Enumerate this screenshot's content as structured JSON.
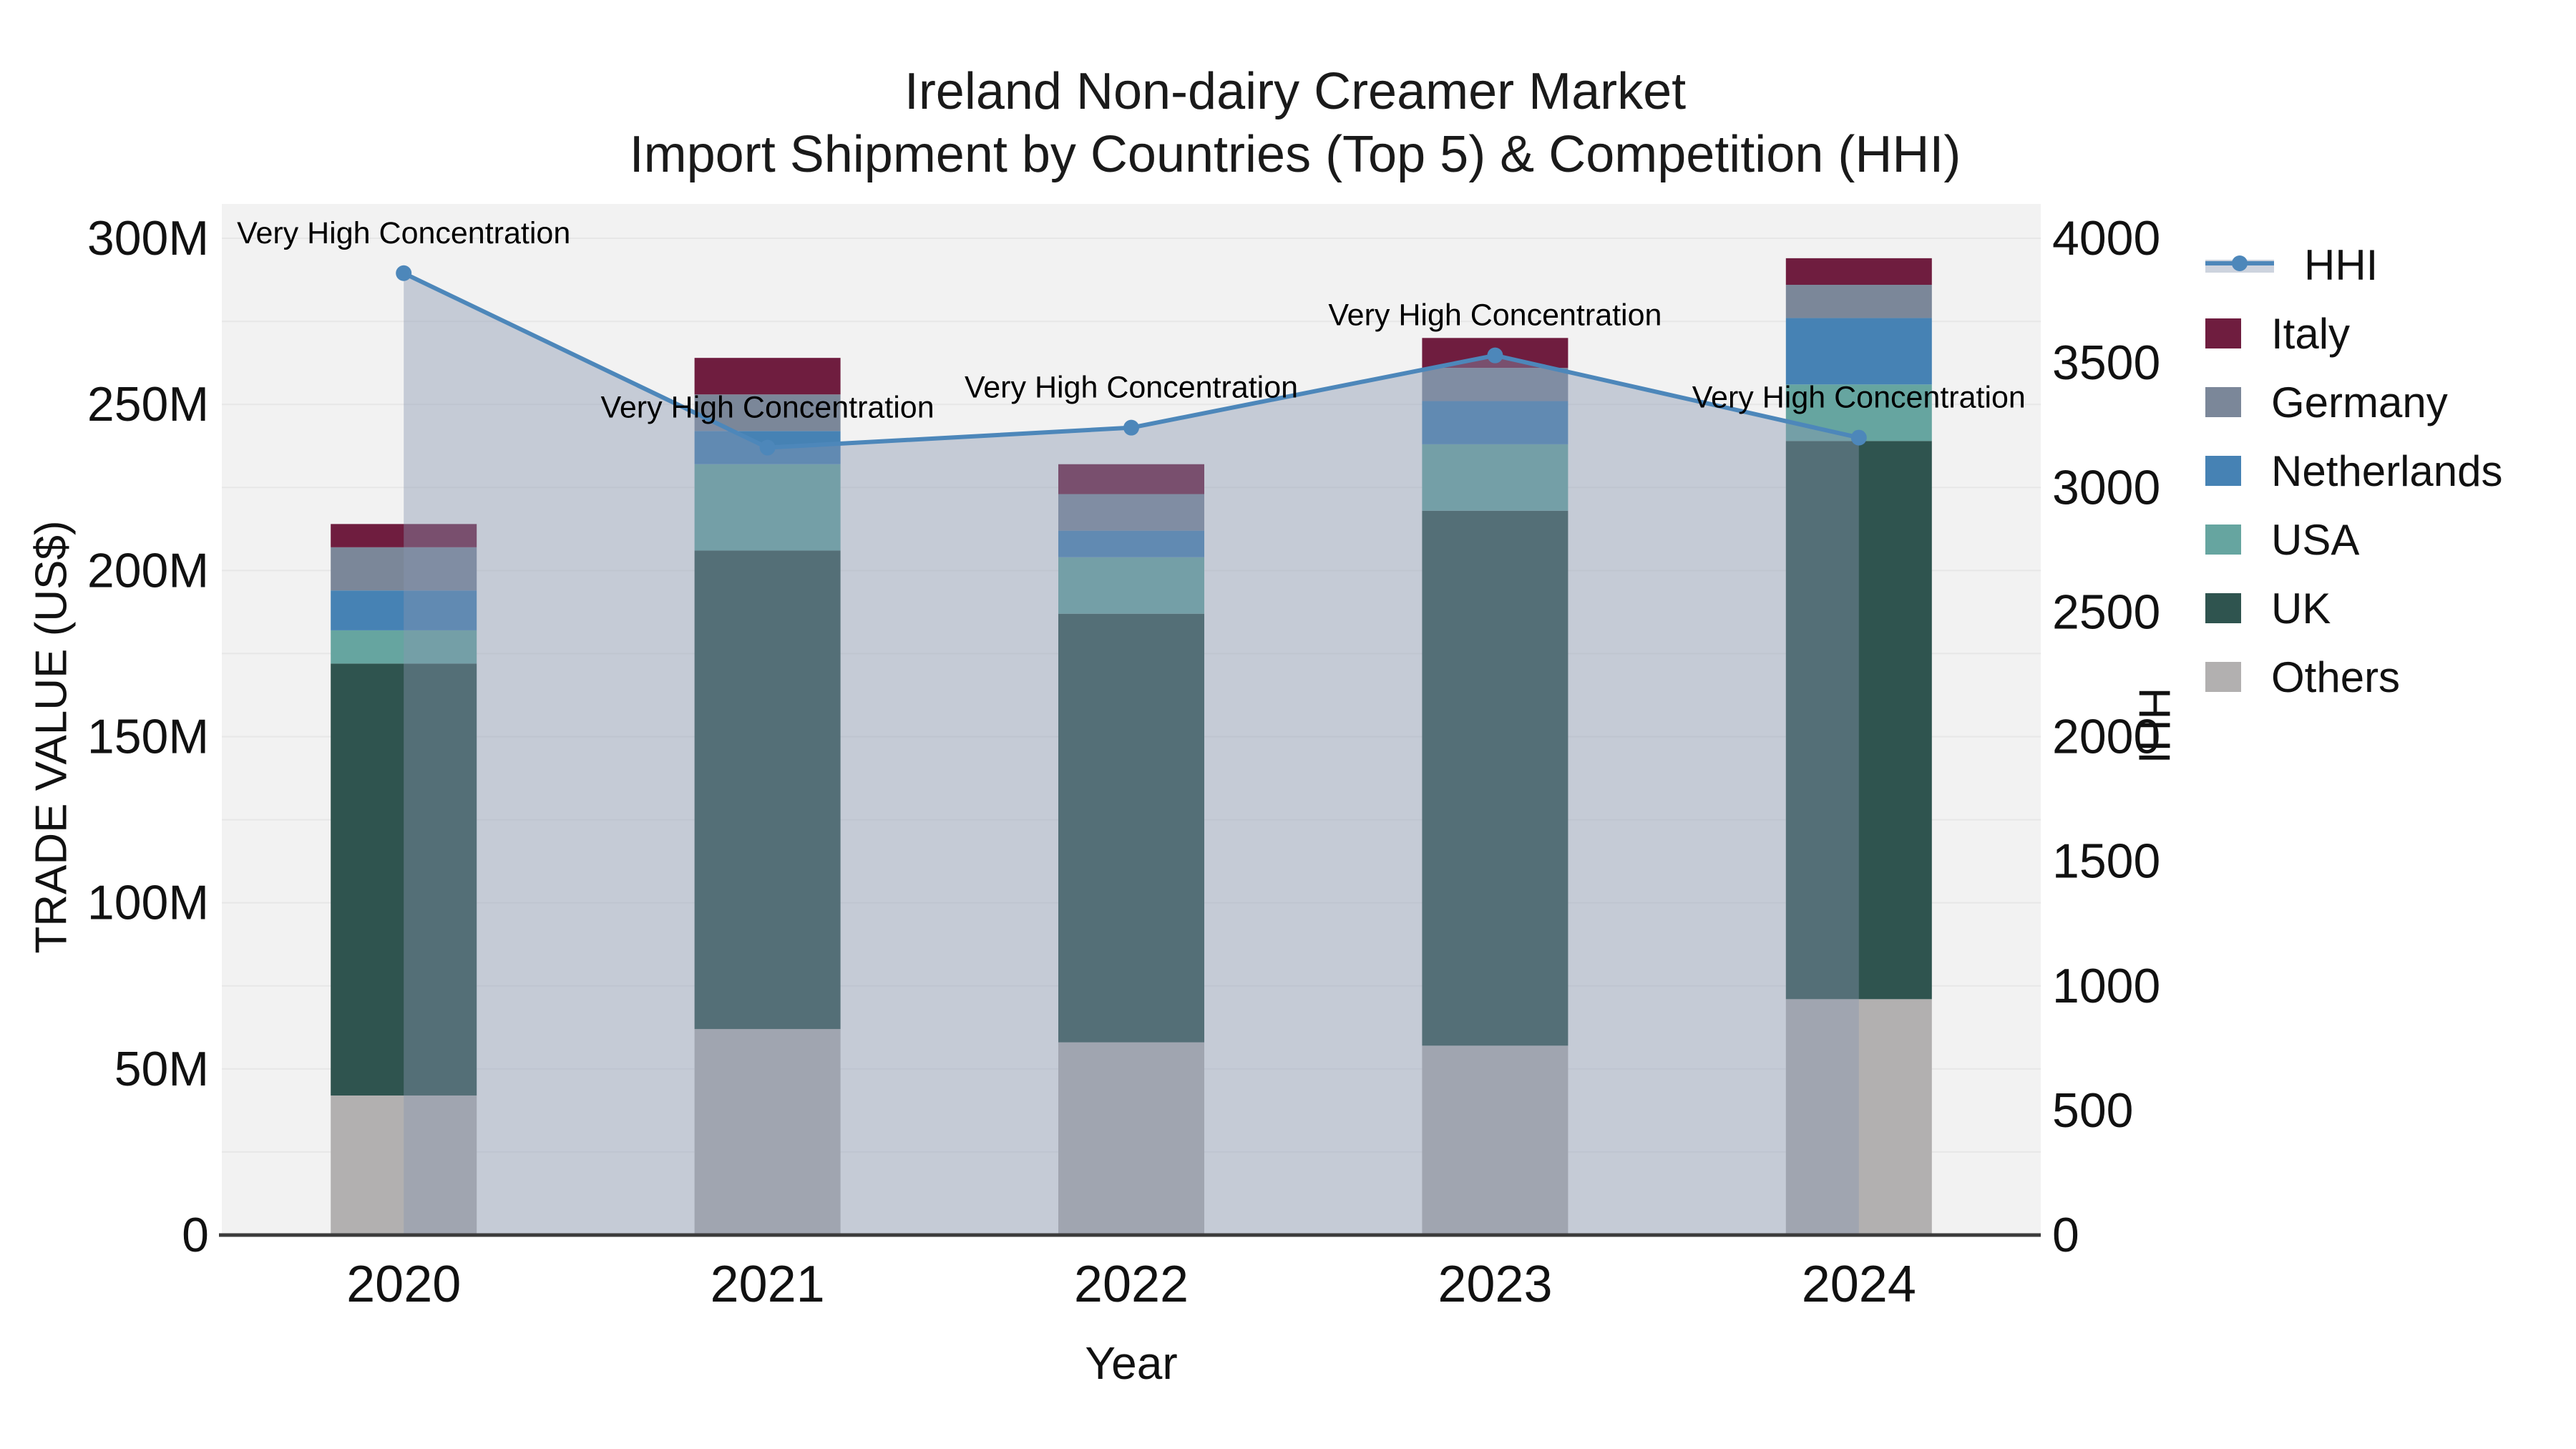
{
  "title": {
    "line1": "Ireland Non-dairy Creamer Market",
    "line2": "Import Shipment by Countries (Top 5) & Competition (HHI)"
  },
  "axes": {
    "y_left": {
      "label": "TRADE VALUE (US$)",
      "ticks": [
        "0",
        "50M",
        "100M",
        "150M",
        "200M",
        "250M",
        "300M"
      ],
      "max": 300
    },
    "y_right": {
      "label": "HHI",
      "ticks": [
        "0",
        "500",
        "1000",
        "1500",
        "2000",
        "2500",
        "3000",
        "3500",
        "4000"
      ],
      "max": 4000
    },
    "x": {
      "label": "Year"
    }
  },
  "legend": {
    "items": [
      {
        "label": "HHI",
        "type": "line",
        "color": "#4D87BA"
      },
      {
        "label": "Italy",
        "type": "patch",
        "color": "#6F1D3F"
      },
      {
        "label": "Germany",
        "type": "patch",
        "color": "#7B8799"
      },
      {
        "label": "Netherlands",
        "type": "patch",
        "color": "#4682B4"
      },
      {
        "label": "USA",
        "type": "patch",
        "color": "#66A5A0"
      },
      {
        "label": "UK",
        "type": "patch",
        "color": "#2F544F"
      },
      {
        "label": "Others",
        "type": "patch",
        "color": "#B2B0B0"
      }
    ]
  },
  "chart_data": {
    "type": "bar",
    "subtype": "stacked-bars-with-line-overlay",
    "title": "Ireland Non-dairy Creamer Market — Import Shipment by Countries (Top 5) & Competition (HHI)",
    "xlabel": "Year",
    "ylabel_left": "TRADE VALUE (US$)",
    "ylabel_right": "HHI",
    "categories": [
      "2020",
      "2021",
      "2022",
      "2023",
      "2024"
    ],
    "ylim_left": [
      0,
      300
    ],
    "ylim_right": [
      0,
      4000
    ],
    "units_left": "Million US$",
    "grid": "on",
    "grid_step_m": 25,
    "series": [
      {
        "name": "Others",
        "color": "#B2B0B0",
        "values": [
          42,
          62,
          58,
          57,
          71
        ]
      },
      {
        "name": "UK",
        "color": "#2F544F",
        "values": [
          130,
          144,
          129,
          161,
          168
        ]
      },
      {
        "name": "USA",
        "color": "#66A5A0",
        "values": [
          10,
          26,
          17,
          20,
          17
        ]
      },
      {
        "name": "Netherlands",
        "color": "#4682B4",
        "values": [
          12,
          10,
          8,
          13,
          20
        ]
      },
      {
        "name": "Germany",
        "color": "#7B8799",
        "values": [
          13,
          11,
          11,
          10,
          10
        ]
      },
      {
        "name": "Italy",
        "color": "#6F1D3F",
        "values": [
          7,
          11,
          9,
          9,
          8
        ]
      }
    ],
    "bar_totals": [
      214,
      264,
      232,
      270,
      294
    ],
    "line_series": {
      "name": "HHI",
      "color": "#4D87BA",
      "area_fill": "rgba(137,150,177,0.42)",
      "values": [
        3860,
        3160,
        3240,
        3530,
        3200
      ]
    },
    "annotations": [
      {
        "x": "2020",
        "label": "Very High Concentration"
      },
      {
        "x": "2021",
        "label": "Very High Concentration"
      },
      {
        "x": "2022",
        "label": "Very High Concentration"
      },
      {
        "x": "2023",
        "label": "Very High Concentration"
      },
      {
        "x": "2024",
        "label": "Very High Concentration"
      }
    ],
    "legend_position": "right"
  },
  "style": {
    "plot_bg": "#F2F2F2",
    "grid_color": "#E7E7E7",
    "axis_line_color": "#3B3B3B",
    "text_color": "#111111"
  }
}
